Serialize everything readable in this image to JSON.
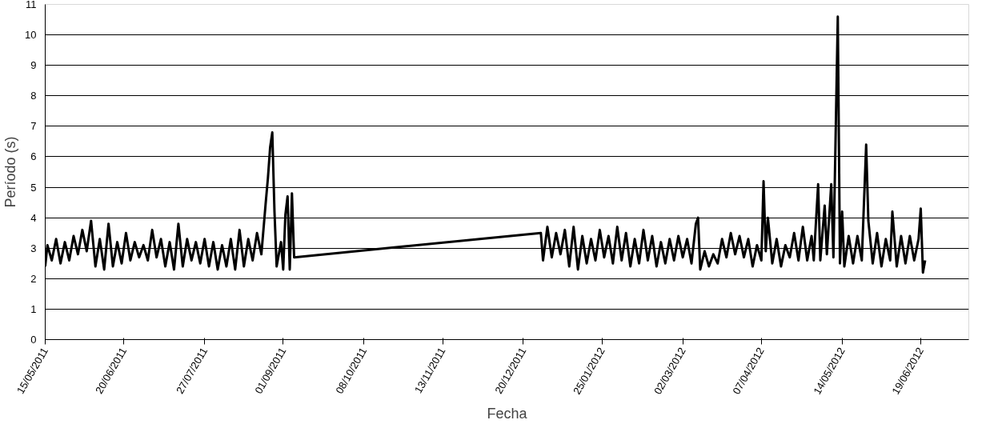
{
  "chart_data": {
    "type": "line",
    "xlabel": "Fecha",
    "ylabel": "Período (s)",
    "xlim": [
      "2011-05-15",
      "2012-07-11"
    ],
    "ylim": [
      0,
      11
    ],
    "yticks": [
      0,
      1,
      2,
      3,
      4,
      5,
      6,
      7,
      8,
      9,
      10,
      11
    ],
    "xticks": [
      {
        "value": "2011-05-15",
        "label": "15/05/2011"
      },
      {
        "value": "2011-06-20",
        "label": "20/06/2011"
      },
      {
        "value": "2011-07-27",
        "label": "27/07/2011"
      },
      {
        "value": "2011-09-01",
        "label": "01/09/2011"
      },
      {
        "value": "2011-10-08",
        "label": "08/10/2011"
      },
      {
        "value": "2011-11-13",
        "label": "13/11/2011"
      },
      {
        "value": "2011-12-20",
        "label": "20/12/2011"
      },
      {
        "value": "2012-01-25",
        "label": "25/01/2012"
      },
      {
        "value": "2012-03-02",
        "label": "02/03/2012"
      },
      {
        "value": "2012-04-07",
        "label": "07/04/2012"
      },
      {
        "value": "2012-05-14",
        "label": "14/05/2012"
      },
      {
        "value": "2012-06-19",
        "label": "19/06/2012"
      }
    ],
    "grid": "y",
    "marker": "none",
    "line_style": "solid",
    "series": [
      {
        "color": "#000000",
        "x": [
          "2011-05-15",
          "2011-05-16",
          "2011-05-18",
          "2011-05-20",
          "2011-05-22",
          "2011-05-24",
          "2011-05-26",
          "2011-05-28",
          "2011-05-30",
          "2011-06-01",
          "2011-06-03",
          "2011-06-05",
          "2011-06-07",
          "2011-06-09",
          "2011-06-11",
          "2011-06-13",
          "2011-06-15",
          "2011-06-17",
          "2011-06-19",
          "2011-06-21",
          "2011-06-23",
          "2011-06-25",
          "2011-06-27",
          "2011-06-29",
          "2011-07-01",
          "2011-07-03",
          "2011-07-05",
          "2011-07-07",
          "2011-07-09",
          "2011-07-11",
          "2011-07-13",
          "2011-07-15",
          "2011-07-17",
          "2011-07-19",
          "2011-07-21",
          "2011-07-23",
          "2011-07-25",
          "2011-07-27",
          "2011-07-29",
          "2011-07-31",
          "2011-08-02",
          "2011-08-04",
          "2011-08-06",
          "2011-08-08",
          "2011-08-10",
          "2011-08-12",
          "2011-08-14",
          "2011-08-16",
          "2011-08-18",
          "2011-08-20",
          "2011-08-22",
          "2011-08-24",
          "2011-08-25",
          "2011-08-26",
          "2011-08-27",
          "2011-08-28",
          "2011-08-29",
          "2011-08-31",
          "2011-09-01",
          "2011-09-02",
          "2011-09-03",
          "2011-09-04",
          "2011-09-05",
          "2011-09-06",
          "2011-12-28",
          "2011-12-29",
          "2011-12-31",
          "2012-01-02",
          "2012-01-04",
          "2012-01-06",
          "2012-01-08",
          "2012-01-10",
          "2012-01-12",
          "2012-01-14",
          "2012-01-16",
          "2012-01-18",
          "2012-01-20",
          "2012-01-22",
          "2012-01-24",
          "2012-01-26",
          "2012-01-28",
          "2012-01-30",
          "2012-02-01",
          "2012-02-03",
          "2012-02-05",
          "2012-02-07",
          "2012-02-09",
          "2012-02-11",
          "2012-02-13",
          "2012-02-15",
          "2012-02-17",
          "2012-02-19",
          "2012-02-21",
          "2012-02-23",
          "2012-02-25",
          "2012-02-27",
          "2012-02-29",
          "2012-03-02",
          "2012-03-04",
          "2012-03-06",
          "2012-03-08",
          "2012-03-09",
          "2012-03-10",
          "2012-03-12",
          "2012-03-14",
          "2012-03-16",
          "2012-03-18",
          "2012-03-20",
          "2012-03-22",
          "2012-03-24",
          "2012-03-26",
          "2012-03-28",
          "2012-03-30",
          "2012-04-01",
          "2012-04-03",
          "2012-04-05",
          "2012-04-07",
          "2012-04-08",
          "2012-04-09",
          "2012-04-10",
          "2012-04-12",
          "2012-04-14",
          "2012-04-16",
          "2012-04-18",
          "2012-04-20",
          "2012-04-22",
          "2012-04-24",
          "2012-04-26",
          "2012-04-28",
          "2012-04-30",
          "2012-05-01",
          "2012-05-03",
          "2012-05-04",
          "2012-05-06",
          "2012-05-07",
          "2012-05-09",
          "2012-05-10",
          "2012-05-12",
          "2012-05-13",
          "2012-05-14",
          "2012-05-15",
          "2012-05-17",
          "2012-05-19",
          "2012-05-21",
          "2012-05-23",
          "2012-05-25",
          "2012-05-26",
          "2012-05-28",
          "2012-05-30",
          "2012-06-01",
          "2012-06-03",
          "2012-06-05",
          "2012-06-06",
          "2012-06-08",
          "2012-06-10",
          "2012-06-12",
          "2012-06-14",
          "2012-06-16",
          "2012-06-18",
          "2012-06-19",
          "2012-06-20",
          "2012-06-21"
        ],
        "values": [
          2.4,
          3.1,
          2.6,
          3.3,
          2.5,
          3.2,
          2.6,
          3.4,
          2.8,
          3.6,
          2.9,
          3.9,
          2.4,
          3.3,
          2.3,
          3.8,
          2.4,
          3.2,
          2.5,
          3.5,
          2.6,
          3.2,
          2.7,
          3.1,
          2.6,
          3.6,
          2.7,
          3.3,
          2.4,
          3.2,
          2.3,
          3.8,
          2.4,
          3.3,
          2.6,
          3.2,
          2.5,
          3.3,
          2.4,
          3.2,
          2.3,
          3.1,
          2.4,
          3.3,
          2.3,
          3.6,
          2.4,
          3.3,
          2.6,
          3.5,
          2.8,
          4.5,
          5.3,
          6.3,
          6.8,
          4.2,
          2.4,
          3.2,
          2.3,
          4.1,
          4.7,
          2.3,
          4.8,
          2.7,
          3.5,
          2.6,
          3.7,
          2.7,
          3.5,
          2.8,
          3.6,
          2.4,
          3.7,
          2.3,
          3.4,
          2.5,
          3.3,
          2.6,
          3.6,
          2.7,
          3.4,
          2.5,
          3.7,
          2.6,
          3.5,
          2.4,
          3.3,
          2.5,
          3.6,
          2.6,
          3.4,
          2.4,
          3.2,
          2.5,
          3.3,
          2.6,
          3.4,
          2.7,
          3.3,
          2.5,
          3.8,
          4.0,
          2.3,
          2.9,
          2.4,
          2.8,
          2.5,
          3.3,
          2.7,
          3.5,
          2.8,
          3.4,
          2.7,
          3.3,
          2.4,
          3.1,
          2.6,
          5.2,
          2.9,
          4.0,
          2.5,
          3.3,
          2.4,
          3.1,
          2.7,
          3.5,
          2.6,
          3.7,
          2.6,
          3.4,
          2.6,
          5.1,
          2.6,
          4.4,
          2.8,
          5.1,
          2.7,
          10.6,
          2.5,
          4.2,
          2.4,
          3.4,
          2.5,
          3.4,
          2.6,
          6.4,
          3.9,
          2.5,
          3.5,
          2.4,
          3.3,
          2.6,
          4.2,
          2.4,
          3.4,
          2.5,
          3.4,
          2.6,
          3.3,
          4.3,
          2.2,
          2.6
        ]
      }
    ]
  }
}
